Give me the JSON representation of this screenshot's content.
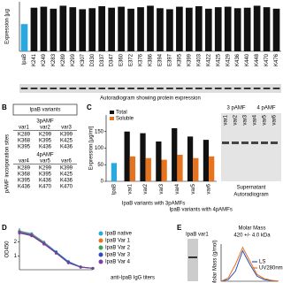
{
  "chart_data": [
    {
      "type": "bar",
      "ylabel": "Expression [µg",
      "categories": [
        "IpaB",
        "K241",
        "K249",
        "K283",
        "K289",
        "K299",
        "K307",
        "D330",
        "D337",
        "D347",
        "E360",
        "E372",
        "K376",
        "K386",
        "E394",
        "E397",
        "K395",
        "K399",
        "K403",
        "K422",
        "K425",
        "K429",
        "K436",
        "K440",
        "K448",
        "K470",
        "K476"
      ],
      "values": [
        55,
        88,
        90,
        86,
        92,
        89,
        85,
        87,
        91,
        88,
        90,
        86,
        89,
        92,
        87,
        85,
        90,
        88,
        91,
        86,
        89,
        90,
        87,
        88,
        92,
        89,
        86
      ],
      "colors": [
        "#29a9e0",
        "#111",
        "#111",
        "#111",
        "#111",
        "#111",
        "#111",
        "#111",
        "#111",
        "#111",
        "#111",
        "#111",
        "#111",
        "#111",
        "#111",
        "#111",
        "#111",
        "#111",
        "#111",
        "#111",
        "#111",
        "#111",
        "#111",
        "#111",
        "#111",
        "#111",
        "#111"
      ],
      "label_colors": [
        "#000",
        "#000",
        "#000",
        "#000",
        "#e8731e",
        "#e8731e",
        "#000",
        "#000",
        "#000",
        "#000",
        "#e8731e",
        "#000",
        "#000",
        "#000",
        "#000",
        "#000",
        "#000",
        "#e8731e",
        "#000",
        "#000",
        "#000",
        "#000",
        "#000",
        "#000",
        "#000",
        "#e8731e",
        "#000"
      ],
      "ylim": [
        0,
        100
      ],
      "caption": "Autoradiogram showing protein expression"
    },
    {
      "type": "bar",
      "panel": "C",
      "ylabel": "Expression [µg/ml]",
      "categories": [
        "IpaB",
        "var1",
        "var2",
        "var3",
        "var4",
        "var5",
        "var6"
      ],
      "series": [
        {
          "name": "Total",
          "color": "#111",
          "point_colors": [
            "#29a9e0",
            "#111",
            "#111",
            "#111",
            "#111",
            "#111",
            "#111"
          ],
          "values": [
            55,
            150,
            145,
            120,
            160,
            135,
            125
          ]
        },
        {
          "name": "Soluble",
          "color": "#e8731e",
          "values": [
            null,
            75,
            70,
            65,
            80,
            70,
            75
          ]
        }
      ],
      "groups": [
        "IpaB variants with 3pAMFs",
        "IpaB variants with 4pAMFs"
      ],
      "ylim": [
        0,
        200
      ],
      "yticks": [
        0,
        50,
        100,
        150
      ]
    },
    {
      "type": "line",
      "panel": "D",
      "ylabel": "OD450",
      "xlabel": "anti-IpaB IgG titers",
      "x": [
        1,
        2,
        3,
        4,
        5,
        6,
        7
      ],
      "xlim": [
        1,
        7
      ],
      "ylim": [
        0,
        3
      ],
      "yticks": [
        1,
        2
      ],
      "series": [
        {
          "name": "IpaB native",
          "color": "#29a9e0",
          "values": [
            2.8,
            2.6,
            2.0,
            1.3,
            0.6,
            0.2,
            0.1
          ]
        },
        {
          "name": "IpaB Var 1",
          "color": "#e8731e",
          "values": [
            2.75,
            2.55,
            1.95,
            1.25,
            0.55,
            0.2,
            0.1
          ]
        },
        {
          "name": "IpaB Var 2",
          "color": "#3aa655",
          "values": [
            2.7,
            2.5,
            1.9,
            1.2,
            0.5,
            0.18,
            0.1
          ]
        },
        {
          "name": "IpaB Var 3",
          "color": "#2b4fb8",
          "values": [
            2.7,
            2.5,
            1.9,
            1.25,
            0.55,
            0.2,
            0.1
          ]
        },
        {
          "name": "IpaB Var 4",
          "color": "#7b3fa0",
          "values": [
            2.65,
            2.45,
            1.85,
            1.2,
            0.5,
            0.18,
            0.1
          ]
        }
      ]
    },
    {
      "type": "line",
      "panel": "E",
      "inset_label": "IpaB var1",
      "title": "Molar Mass",
      "subtitle": "420 +/- 4.0 kDa",
      "ylabel": "Molar Mass (g/mol)",
      "x": [
        0,
        1,
        2,
        3,
        4,
        5,
        6,
        7,
        8
      ],
      "xlim": [
        0,
        8
      ],
      "ylim": [
        0,
        1.1
      ],
      "series": [
        {
          "name": "LS",
          "color": "#2b4fb8",
          "values": [
            0,
            0.05,
            0.3,
            0.9,
            0.5,
            0.15,
            0.05,
            0.02,
            0
          ]
        },
        {
          "name": "UV280nm",
          "color": "#e8731e",
          "values": [
            0,
            0.1,
            0.5,
            1.0,
            0.6,
            0.2,
            0.08,
            0.03,
            0
          ]
        }
      ]
    }
  ],
  "table": {
    "panel": "B",
    "title": "IpaB variants",
    "side_label": "pAMF incorporation sites",
    "groups": [
      {
        "name": "3pAMF",
        "header": [
          "var1",
          "var2",
          "var3"
        ],
        "rows": [
          [
            "K289",
            "K299",
            "K399"
          ],
          [
            "K368",
            "K395",
            "K425"
          ],
          [
            "K395",
            "K436",
            "K436"
          ]
        ]
      },
      {
        "name": "4pAMF",
        "header": [
          "var4",
          "var5",
          "var6"
        ],
        "rows": [
          [
            "K289",
            "K299",
            "K399"
          ],
          [
            "K368",
            "K395",
            "K425"
          ],
          [
            "K395",
            "K436",
            "K436"
          ],
          [
            "K436",
            "K470",
            "K470"
          ]
        ]
      }
    ]
  },
  "gel": {
    "groups": [
      "3 pAMF",
      "4 pAMF"
    ],
    "lanes": [
      "var1",
      "var2",
      "var3",
      "var4",
      "var5",
      "var6"
    ],
    "label": "Supernatant",
    "caption": "Autoradiogram"
  }
}
